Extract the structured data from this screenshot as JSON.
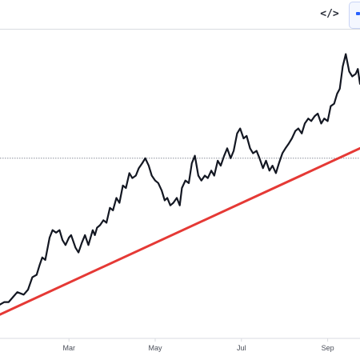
{
  "toolbar": {
    "embed_icon": "code-brackets-icon",
    "embed_label": "</>",
    "side_icon": "panel-icon"
  },
  "colors": {
    "price": "#131722",
    "trendline": "#e53935",
    "reference_line": "#8a8f9c",
    "axis_text": "#4a4e59",
    "border": "#d9dbe0"
  },
  "chart_data": {
    "type": "line",
    "x_tick_labels": [
      "Mar",
      "May",
      "Jul",
      "Sep"
    ],
    "x_tick_positions": [
      2.0,
      4.0,
      6.0,
      8.0
    ],
    "xlim": [
      0.4,
      8.75
    ],
    "ylim": [
      0,
      100
    ],
    "grid": false,
    "legend": "none",
    "reference_level": 62,
    "series": [
      {
        "role": "price",
        "x": [
          0.4,
          0.5,
          0.6,
          0.7,
          0.8,
          0.95,
          1.05,
          1.15,
          1.25,
          1.32,
          1.38,
          1.45,
          1.55,
          1.62,
          1.7,
          1.78,
          1.85,
          1.92,
          2.0,
          2.05,
          2.15,
          2.22,
          2.3,
          2.37,
          2.45,
          2.55,
          2.6,
          2.65,
          2.72,
          2.8,
          2.87,
          2.95,
          3.02,
          3.1,
          3.17,
          3.25,
          3.32,
          3.4,
          3.47,
          3.55,
          3.62,
          3.7,
          3.77,
          3.85,
          3.92,
          4.0,
          4.07,
          4.15,
          4.22,
          4.28,
          4.35,
          4.42,
          4.5,
          4.57,
          4.62,
          4.7,
          4.78,
          4.85,
          4.92,
          5.0,
          5.07,
          5.15,
          5.22,
          5.3,
          5.37,
          5.45,
          5.52,
          5.6,
          5.67,
          5.75,
          5.82,
          5.9,
          5.97,
          6.05,
          6.12,
          6.2,
          6.27,
          6.35,
          6.42,
          6.5,
          6.57,
          6.65,
          6.72,
          6.8,
          6.87,
          6.95,
          7.02,
          7.1,
          7.17,
          7.25,
          7.32,
          7.4,
          7.47,
          7.55,
          7.62,
          7.7,
          7.77,
          7.85,
          7.92,
          8.0,
          8.07,
          8.15,
          8.22,
          8.28,
          8.35,
          8.42,
          8.5,
          8.57,
          8.65,
          8.7,
          8.75
        ],
        "values": [
          3,
          4,
          4,
          6,
          8,
          7,
          9,
          14,
          15,
          19,
          22,
          21,
          30,
          33,
          32,
          33,
          29,
          27,
          30,
          31,
          26,
          24,
          28,
          31,
          27,
          33,
          31,
          34,
          35,
          37,
          36,
          42,
          41,
          46,
          44,
          51,
          50,
          56,
          54,
          55,
          58,
          60,
          62,
          59,
          55,
          53,
          52,
          49,
          45,
          46,
          43,
          44,
          46,
          43,
          50,
          53,
          52,
          60,
          63,
          55,
          53,
          55,
          54,
          57,
          55,
          61,
          59,
          63,
          66,
          62,
          65,
          72,
          74,
          70,
          71,
          66,
          64,
          65,
          62,
          58,
          61,
          57,
          59,
          56,
          60,
          64,
          66,
          68,
          70,
          73,
          74,
          72,
          76,
          78,
          77,
          79,
          80,
          76,
          78,
          77,
          83,
          84,
          88,
          90,
          99,
          104,
          97,
          95,
          96,
          98,
          92
        ]
      },
      {
        "role": "trendline",
        "x": [
          0.4,
          8.75
        ],
        "values": [
          -1,
          66
        ]
      }
    ]
  }
}
